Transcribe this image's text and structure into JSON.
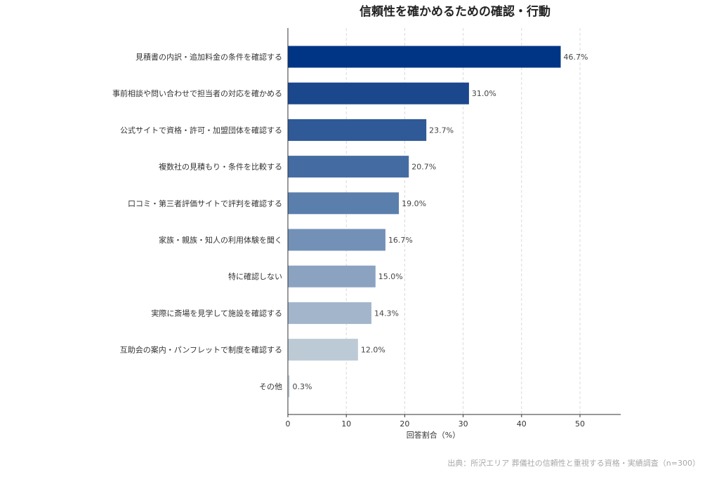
{
  "chart_data": {
    "type": "bar",
    "orientation": "horizontal",
    "title": "信頼性を確かめるための確認・行動",
    "xlabel": "回答割合（%）",
    "ylabel": "",
    "xlim": [
      0,
      57
    ],
    "xticks": [
      0,
      10,
      20,
      30,
      40,
      50
    ],
    "grid": "vertical-dashed",
    "categories": [
      "見積書の内訳・追加料金の条件を確認する",
      "事前相談や問い合わせで担当者の対応を確かめる",
      "公式サイトで資格・許可・加盟団体を確認する",
      "複数社の見積もり・条件を比較する",
      "口コミ・第三者評価サイトで評判を確認する",
      "家族・親族・知人の利用体験を聞く",
      "特に確認しない",
      "実際に斎場を見学して施設を確認する",
      "互助会の案内・パンフレットで制度を確認する",
      "その他"
    ],
    "values": [
      46.7,
      31.0,
      23.7,
      20.7,
      19.0,
      16.7,
      15.0,
      14.3,
      12.0,
      0.3
    ],
    "value_labels": [
      "46.7%",
      "31.0%",
      "23.7%",
      "20.7%",
      "19.0%",
      "16.7%",
      "15.0%",
      "14.3%",
      "12.0%",
      "0.3%"
    ],
    "colors": [
      "#003585",
      "#1b478d",
      "#2f5997",
      "#456ca2",
      "#5b7fac",
      "#7391b7",
      "#8ba3c1",
      "#a2b5cb",
      "#bccad5",
      "#c9d3dc"
    ],
    "source": "出典：所沢エリア 葬儀社の信頼性と重視する資格・実績調査（n=300）"
  }
}
